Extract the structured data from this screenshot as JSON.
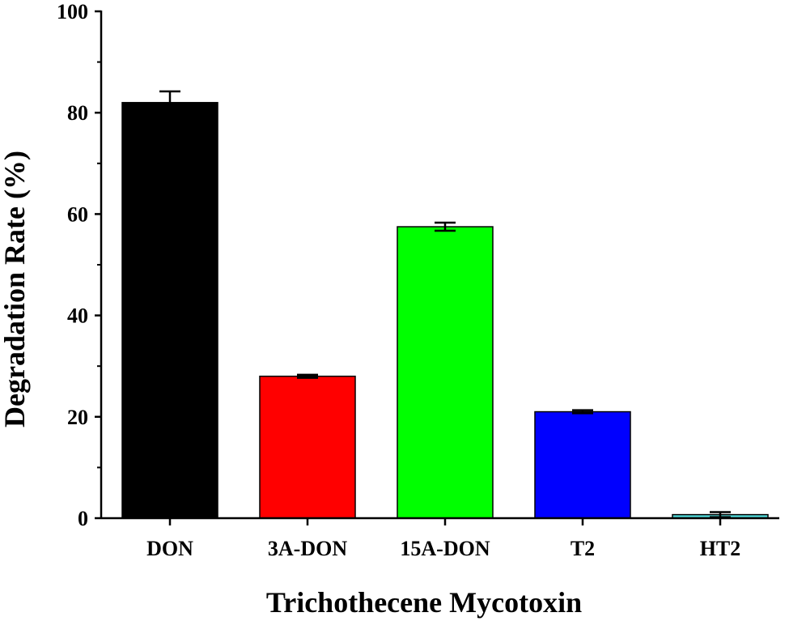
{
  "chart_data": {
    "type": "bar",
    "title": "",
    "xlabel": "Trichothecene Mycotoxin",
    "ylabel": "Degradation Rate (%)",
    "ylim": [
      0,
      100
    ],
    "yticks": [
      "0",
      "20",
      "40",
      "60",
      "80",
      "100"
    ],
    "categories": [
      "DON",
      "3A-DON",
      "15A-DON",
      "T2",
      "HT2"
    ],
    "values": [
      82,
      28,
      57.5,
      21,
      0.7
    ],
    "errors": [
      2.2,
      0.3,
      0.8,
      0.3,
      0.5
    ],
    "colors": [
      "#000000",
      "#ff0000",
      "#00ff00",
      "#0000ff",
      "#4fd7d7"
    ],
    "grid": false,
    "legend": "none"
  }
}
